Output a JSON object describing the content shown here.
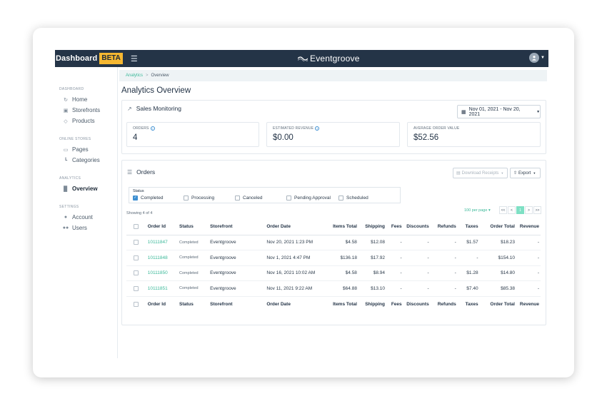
{
  "topbar": {
    "brand": "Dashboard",
    "beta": "BETA",
    "logo_text": "Eventgroove"
  },
  "sidebar": {
    "sections": [
      {
        "label": "DASHBOARD",
        "items": [
          {
            "label": "Home",
            "icon": "refresh-icon"
          },
          {
            "label": "Storefronts",
            "icon": "window-icon"
          },
          {
            "label": "Products",
            "icon": "tag-icon"
          }
        ]
      },
      {
        "label": "ONLINE STORES",
        "items": [
          {
            "label": "Pages",
            "icon": "page-icon"
          },
          {
            "label": "Categories",
            "icon": "folder-tree-icon"
          }
        ]
      },
      {
        "label": "ANALYTICS",
        "items": [
          {
            "label": "Overview",
            "icon": "bar-chart-icon",
            "active": true
          }
        ]
      },
      {
        "label": "SETTINGS",
        "items": [
          {
            "label": "Account",
            "icon": "user-icon"
          },
          {
            "label": "Users",
            "icon": "users-icon"
          }
        ]
      }
    ]
  },
  "breadcrumb": {
    "root": "Analytics",
    "separator": ">",
    "current": "Overview"
  },
  "page_title": "Analytics Overview",
  "sales": {
    "title": "Sales Monitoring",
    "date_range": "Nov 01, 2021 - Nov 20, 2021",
    "stats": [
      {
        "label": "ORDERS",
        "value": "4"
      },
      {
        "label": "ESTIMATED REVENUE",
        "value": "$0.00"
      },
      {
        "label": "AVERAGE ORDER VALUE",
        "value": "$52.56"
      }
    ]
  },
  "orders": {
    "title": "Orders",
    "download_label": "Download Receipts",
    "export_label": "Export",
    "status_label": "Status",
    "status_filters": [
      {
        "label": "Completed",
        "checked": true
      },
      {
        "label": "Processing",
        "checked": false
      },
      {
        "label": "Canceled",
        "checked": false
      },
      {
        "label": "Pending Approval",
        "checked": false
      },
      {
        "label": "Scheduled",
        "checked": false
      }
    ],
    "showing": "Showing 4 of 4",
    "per_page": "100 per page",
    "pager": [
      "<<",
      "<",
      "1",
      ">",
      ">>"
    ],
    "columns": [
      "Order Id",
      "Status",
      "Storefront",
      "Order Date",
      "Items Total",
      "Shipping",
      "Fees",
      "Discounts",
      "Refunds",
      "Taxes",
      "Order Total",
      "Revenue"
    ],
    "rows": [
      [
        "10111847",
        "Completed",
        "Eventgroove",
        "Nov 20, 2021 1:23 PM",
        "$4.58",
        "$12.08",
        "-",
        "-",
        "-",
        "$1.57",
        "$18.23",
        "-"
      ],
      [
        "10111848",
        "Completed",
        "Eventgroove",
        "Nov 1, 2021 4:47 PM",
        "$136.18",
        "$17.92",
        "-",
        "-",
        "-",
        "-",
        "$154.10",
        "-"
      ],
      [
        "10111850",
        "Completed",
        "Eventgroove",
        "Nov 16, 2021 10:02 AM",
        "$4.58",
        "$8.94",
        "-",
        "-",
        "-",
        "$1.28",
        "$14.80",
        "-"
      ],
      [
        "10111851",
        "Completed",
        "Eventgroove",
        "Nov 11, 2021 9:22 AM",
        "$64.88",
        "$13.10",
        "-",
        "-",
        "-",
        "$7.40",
        "$85.38",
        "-"
      ]
    ]
  },
  "colors": {
    "topbar": "#243447",
    "accent": "#3cb99a",
    "beta": "#f5b731",
    "checkbox": "#3d8fd1"
  }
}
